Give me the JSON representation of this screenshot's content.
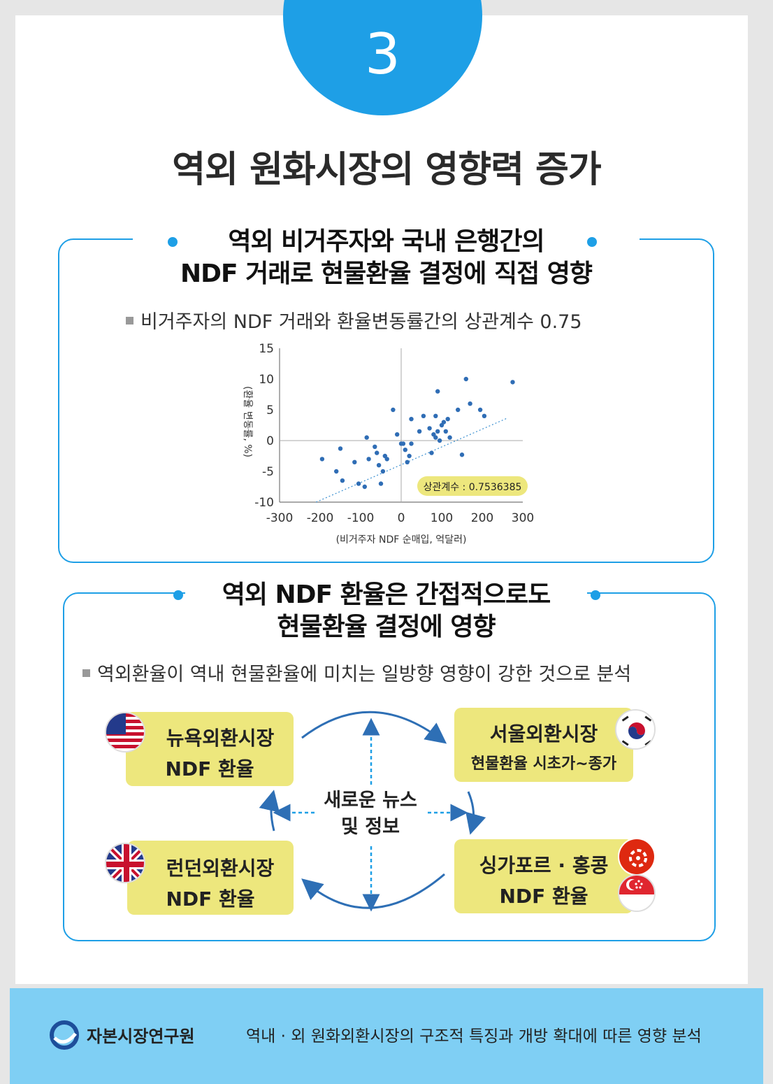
{
  "badge": {
    "number": "3"
  },
  "title": "역외 원화시장의 영향력 증가",
  "section1": {
    "heading_line1": "역외 비거주자와 국내 은행간의",
    "heading_line2": "NDF 거래로 현물환율 결정에 직접 영향",
    "bullet": "비거주자의 NDF 거래와 환율변동률간의 상관계수 0.75"
  },
  "chart_data": {
    "type": "scatter",
    "xlabel": "(비거주자 NDF 순매입, 억달러)",
    "ylabel": "(환율 변동률, %)",
    "xlim": [
      -300,
      300
    ],
    "ylim": [
      -10,
      15
    ],
    "x_ticks": [
      "-300",
      "-200",
      "-100",
      "0",
      "100",
      "200",
      "300"
    ],
    "y_ticks": [
      "15",
      "10",
      "5",
      "0",
      "-5",
      "-10"
    ],
    "annotation": "상관계수 : 0.7536385",
    "trendline": true,
    "points": [
      [
        -195,
        -3
      ],
      [
        -160,
        -5
      ],
      [
        -150,
        -1.3
      ],
      [
        -145,
        -6.5
      ],
      [
        -115,
        -3.5
      ],
      [
        -105,
        -7
      ],
      [
        -90,
        -7.5
      ],
      [
        -85,
        0.5
      ],
      [
        -80,
        -3
      ],
      [
        -65,
        -1
      ],
      [
        -60,
        -2
      ],
      [
        -55,
        -4
      ],
      [
        -50,
        -7
      ],
      [
        -45,
        -5
      ],
      [
        -40,
        -2.5
      ],
      [
        -35,
        -3
      ],
      [
        -20,
        5
      ],
      [
        -10,
        1
      ],
      [
        0,
        -0.5
      ],
      [
        5,
        -0.5
      ],
      [
        10,
        -1.5
      ],
      [
        15,
        -3.5
      ],
      [
        20,
        -2.5
      ],
      [
        25,
        -0.5
      ],
      [
        25,
        3.5
      ],
      [
        45,
        1.5
      ],
      [
        55,
        4
      ],
      [
        70,
        2
      ],
      [
        75,
        -2
      ],
      [
        80,
        1
      ],
      [
        85,
        4
      ],
      [
        85,
        0.5
      ],
      [
        90,
        8
      ],
      [
        90,
        1.5
      ],
      [
        95,
        0
      ],
      [
        100,
        2.5
      ],
      [
        105,
        3
      ],
      [
        110,
        1.5
      ],
      [
        115,
        3.5
      ],
      [
        120,
        0.5
      ],
      [
        140,
        5
      ],
      [
        150,
        -2.3
      ],
      [
        160,
        10
      ],
      [
        170,
        6
      ],
      [
        195,
        5
      ],
      [
        205,
        4
      ],
      [
        275,
        9.5
      ]
    ],
    "trend_from": [
      -210,
      -10
    ],
    "trend_to": [
      260,
      3.6
    ]
  },
  "section2": {
    "heading_line1": "역외 NDF 환율은 간접적으로도",
    "heading_line2": "현물환율 결정에 영향",
    "bullet": "역외환율이 역내 현물환율에 미치는 일방향 영향이 강한 것으로 분석"
  },
  "diagram": {
    "ny_line1": "뉴욕외환시장",
    "ny_line2": "NDF 환율",
    "seoul_line1": "서울외환시장",
    "seoul_line2": "현물환율 시초가~종가",
    "london_line1": "런던외환시장",
    "london_line2": "NDF 환율",
    "sg_line1": "싱가포르 · 홍콩",
    "sg_line2": "NDF 환율",
    "center_line1": "새로운 뉴스",
    "center_line2": "및 정보",
    "arrow_color": "#2e6fb5",
    "box_color": "#ede77d"
  },
  "footer": {
    "org": "자본시장연구원",
    "report_title": "역내 · 외 원화외환시장의 구조적 특징과 개방 확대에 따른 영향 분석"
  },
  "colors": {
    "accent": "#1e9fe6",
    "band": "#7fcff4",
    "point": "#2f6db5"
  }
}
